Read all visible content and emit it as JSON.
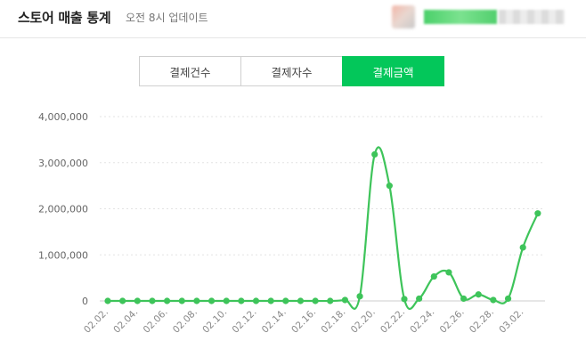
{
  "header": {
    "title": "스토어 매출 통계",
    "update_text": "오전 8시 업데이트"
  },
  "tabs": [
    {
      "label": "결제건수",
      "active": false
    },
    {
      "label": "결제자수",
      "active": false
    },
    {
      "label": "결제금액",
      "active": true
    }
  ],
  "colors": {
    "accent": "#03c75a",
    "line": "#3ec45a"
  },
  "chart_data": {
    "type": "line",
    "title": "",
    "xlabel": "",
    "ylabel": "",
    "ylim": [
      0,
      4000000
    ],
    "y_ticks": [
      0,
      1000000,
      2000000,
      3000000,
      4000000
    ],
    "y_tick_labels": [
      "0",
      "1,000,000",
      "2,000,000",
      "3,000,000",
      "4,000,000"
    ],
    "grid": true,
    "x": [
      "02.02.",
      "02.03.",
      "02.04.",
      "02.05.",
      "02.06.",
      "02.07.",
      "02.08.",
      "02.09.",
      "02.10.",
      "02.11.",
      "02.12.",
      "02.13.",
      "02.14.",
      "02.15.",
      "02.16.",
      "02.17.",
      "02.18.",
      "02.19.",
      "02.20.",
      "02.21.",
      "02.22.",
      "02.23.",
      "02.24.",
      "02.25.",
      "02.26.",
      "02.27.",
      "02.28.",
      "03.01.",
      "03.02.",
      "03.03."
    ],
    "x_tick_labels": [
      "02.02.",
      "02.04.",
      "02.06.",
      "02.08.",
      "02.10.",
      "02.12.",
      "02.14.",
      "02.16.",
      "02.18.",
      "02.20.",
      "02.22.",
      "02.24.",
      "02.26.",
      "02.28.",
      "03.02."
    ],
    "series": [
      {
        "values": [
          0,
          0,
          0,
          0,
          0,
          0,
          0,
          0,
          0,
          0,
          0,
          0,
          0,
          0,
          0,
          0,
          20000,
          100000,
          3180000,
          2500000,
          40000,
          50000,
          530000,
          620000,
          50000,
          140000,
          20000,
          50000,
          1160000,
          1900000
        ]
      }
    ]
  }
}
